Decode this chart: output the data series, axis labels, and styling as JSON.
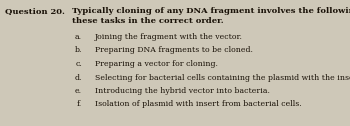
{
  "background_color": "#cec8b8",
  "question_label": "Question 20.",
  "question_line1": "Typically cloning of any DNA fragment involves the following tasks: Put",
  "question_line2": "these tasks in the correct order.",
  "items": [
    {
      "label": "a.",
      "text": "Joining the fragment with the vector."
    },
    {
      "label": "b.",
      "text": "Preparing DNA fragments to be cloned."
    },
    {
      "label": "c.",
      "text": "Preparing a vector for cloning."
    },
    {
      "label": "d.",
      "text": "Selecting for bacterial cells containing the plasmid with the insert."
    },
    {
      "label": "e.",
      "text": "Introducing the hybrid vector into bacteria."
    },
    {
      "label": "f.",
      "text": "Isolation of plasmid with insert from bacterial cells."
    }
  ],
  "text_color": "#1a1208",
  "q_label_fontsize": 6.0,
  "q_text_fontsize": 6.0,
  "item_fontsize": 5.6
}
